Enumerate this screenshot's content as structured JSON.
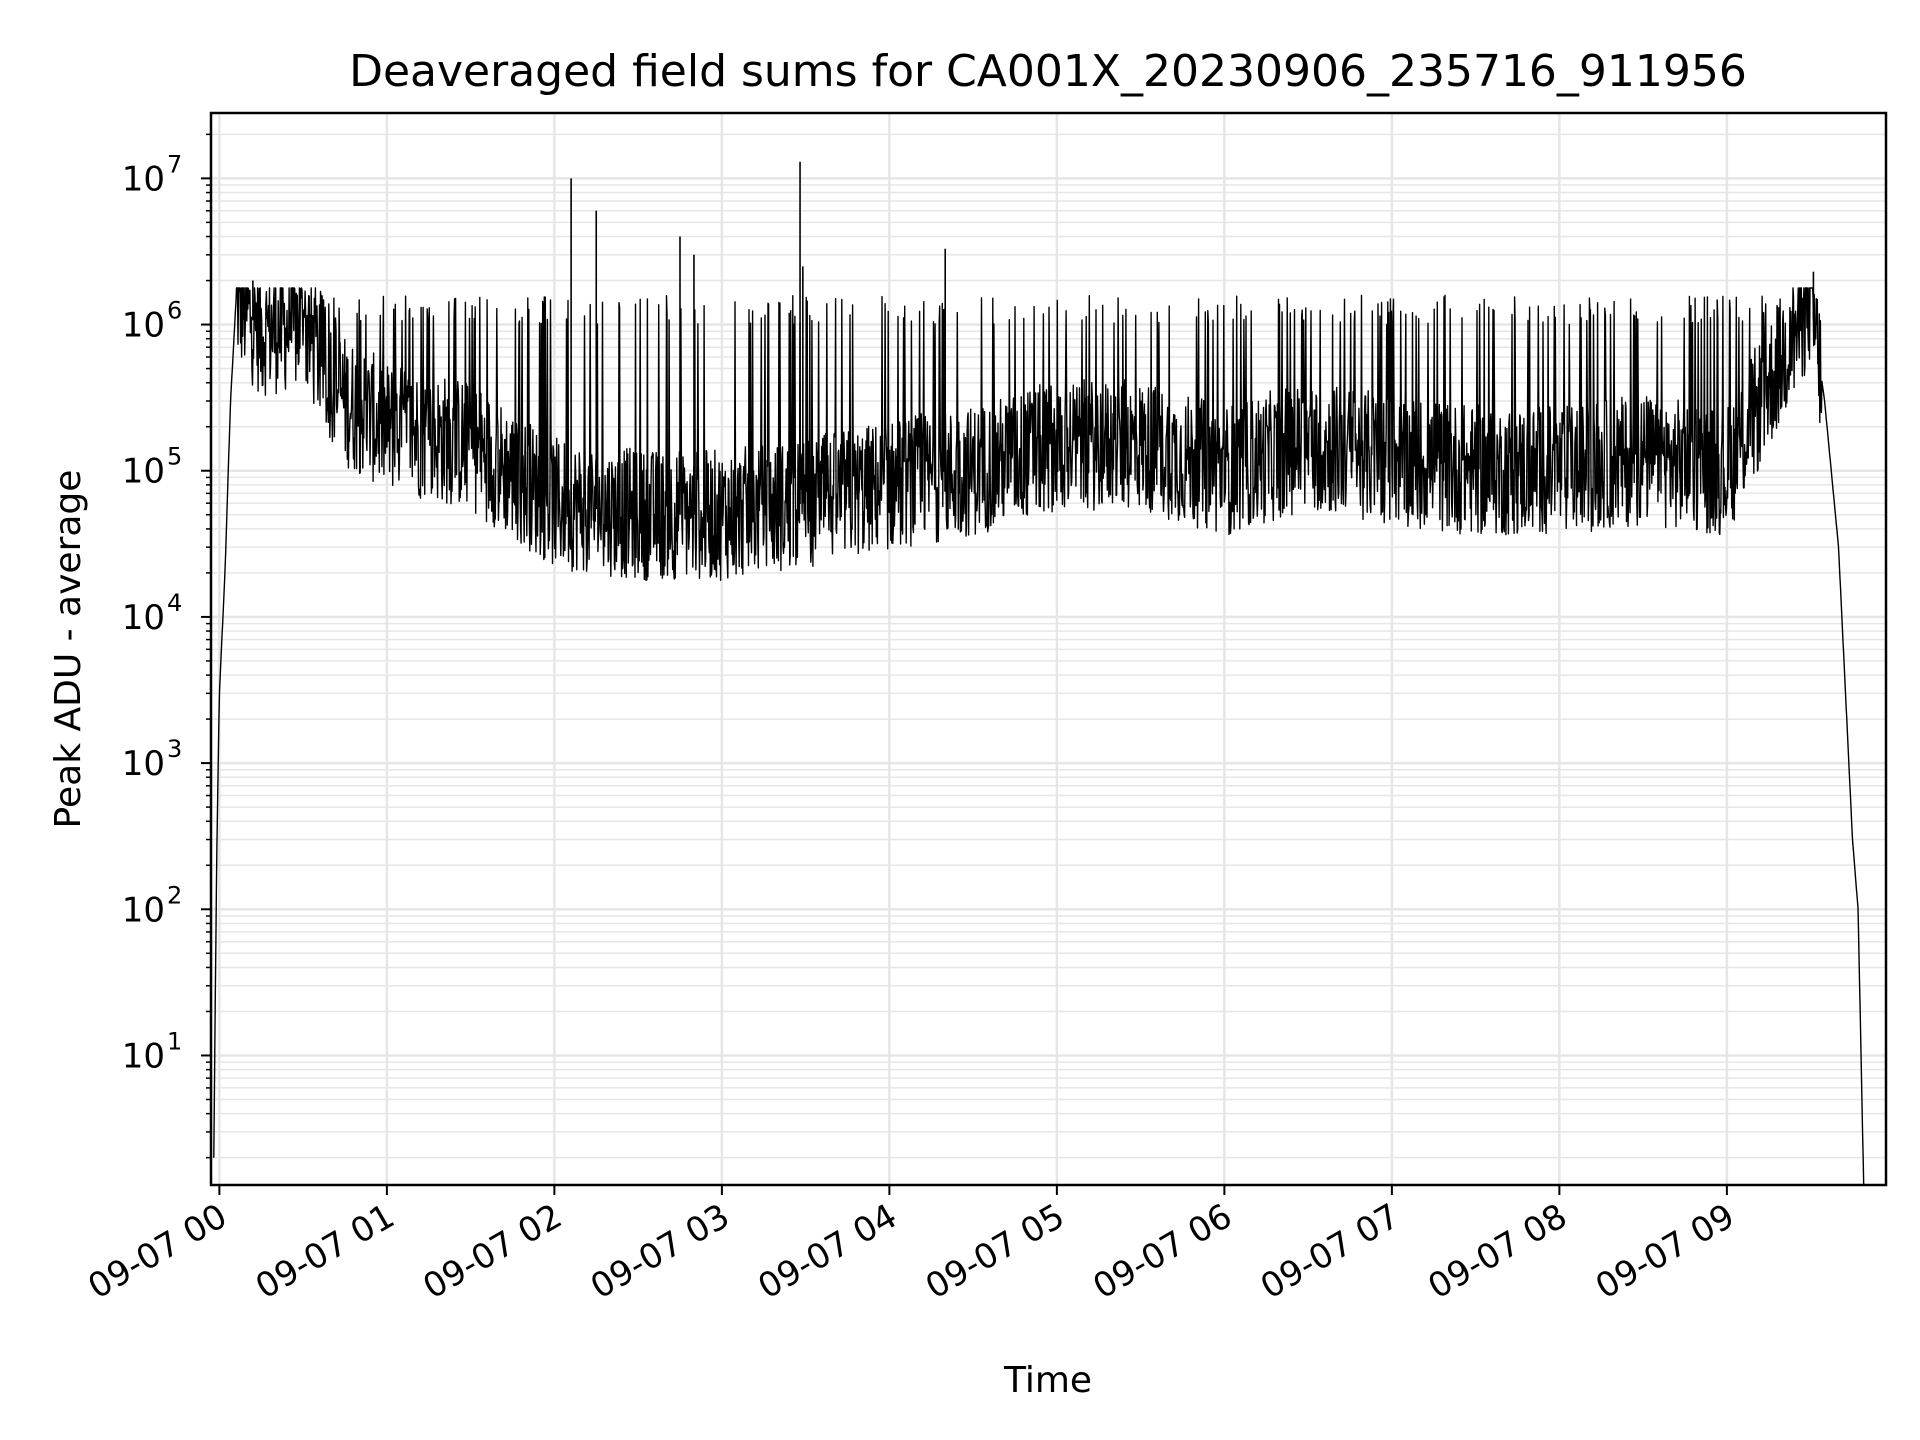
{
  "chart_data": {
    "type": "line",
    "title": "Deaveraged field sums for CA001X_20230906_235716_911956",
    "xlabel": "Time",
    "ylabel": "Peak ADU - average",
    "yscale": "log",
    "ylim": [
      1.3,
      28000000
    ],
    "xlim": [
      "2023-09-06 23:57",
      "2023-09-07 09:57"
    ],
    "grid": {
      "major": true,
      "minor_y": true
    },
    "line_color": "#000000",
    "grid_color": "#e6e6e6",
    "x_ticks": [
      {
        "label": "09-07 00",
        "time": "2023-09-07 00:00"
      },
      {
        "label": "09-07 01",
        "time": "2023-09-07 01:00"
      },
      {
        "label": "09-07 02",
        "time": "2023-09-07 02:00"
      },
      {
        "label": "09-07 03",
        "time": "2023-09-07 03:00"
      },
      {
        "label": "09-07 04",
        "time": "2023-09-07 04:00"
      },
      {
        "label": "09-07 05",
        "time": "2023-09-07 05:00"
      },
      {
        "label": "09-07 06",
        "time": "2023-09-07 06:00"
      },
      {
        "label": "09-07 07",
        "time": "2023-09-07 07:00"
      },
      {
        "label": "09-07 08",
        "time": "2023-09-07 08:00"
      },
      {
        "label": "09-07 09",
        "time": "2023-09-07 09:00"
      }
    ],
    "y_ticks": [
      {
        "base": "10",
        "exp": "1",
        "value": 10
      },
      {
        "base": "10",
        "exp": "2",
        "value": 100
      },
      {
        "base": "10",
        "exp": "3",
        "value": 1000
      },
      {
        "base": "10",
        "exp": "4",
        "value": 10000
      },
      {
        "base": "10",
        "exp": "5",
        "value": 100000
      },
      {
        "base": "10",
        "exp": "6",
        "value": 1000000
      },
      {
        "base": "10",
        "exp": "7",
        "value": 10000000
      }
    ],
    "series": [
      {
        "points": [
          [
            "2023-09-06 23:58",
            2
          ],
          [
            "2023-09-06 23:59",
            200
          ],
          [
            "2023-09-07 00:00",
            3000
          ],
          [
            "2023-09-07 00:02",
            20000
          ],
          [
            "2023-09-07 00:04",
            300000
          ],
          [
            "2023-09-07 00:06",
            1500000
          ],
          [
            "2023-09-07 00:15",
            900000
          ],
          [
            "2023-09-07 00:30",
            1000000
          ],
          [
            "2023-09-07 00:45",
            300000
          ],
          [
            "2023-09-07 01:00",
            200000
          ],
          [
            "2023-09-07 01:30",
            150000
          ],
          [
            "2023-09-07 02:00",
            60000
          ],
          [
            "2023-09-07 02:30",
            50000
          ],
          [
            "2023-09-07 03:00",
            50000
          ],
          [
            "2023-09-07 03:30",
            60000
          ],
          [
            "2023-09-07 04:00",
            80000
          ],
          [
            "2023-09-07 04:30",
            100000
          ],
          [
            "2023-09-07 05:00",
            150000
          ],
          [
            "2023-09-07 05:30",
            150000
          ],
          [
            "2023-09-07 06:00",
            100000
          ],
          [
            "2023-09-07 06:30",
            150000
          ],
          [
            "2023-09-07 07:00",
            120000
          ],
          [
            "2023-09-07 07:30",
            100000
          ],
          [
            "2023-09-07 08:00",
            100000
          ],
          [
            "2023-09-07 08:30",
            120000
          ],
          [
            "2023-09-07 09:00",
            100000
          ],
          [
            "2023-09-07 09:20",
            600000
          ],
          [
            "2023-09-07 09:30",
            1500000
          ],
          [
            "2023-09-07 09:35",
            300000
          ],
          [
            "2023-09-07 09:40",
            30000
          ],
          [
            "2023-09-07 09:45",
            300
          ],
          [
            "2023-09-07 09:47",
            100
          ],
          [
            "2023-09-07 09:49",
            1.3
          ]
        ],
        "spikes": [
          [
            "2023-09-07 00:12",
            2000000
          ],
          [
            "2023-09-07 02:06",
            10000000
          ],
          [
            "2023-09-07 02:15",
            6000000
          ],
          [
            "2023-09-07 02:45",
            4000000
          ],
          [
            "2023-09-07 02:50",
            3000000
          ],
          [
            "2023-09-07 03:28",
            13000000
          ],
          [
            "2023-09-07 03:29",
            2500000
          ],
          [
            "2023-09-07 04:20",
            3300000
          ],
          [
            "2023-09-07 09:31",
            2300000
          ]
        ]
      }
    ]
  }
}
